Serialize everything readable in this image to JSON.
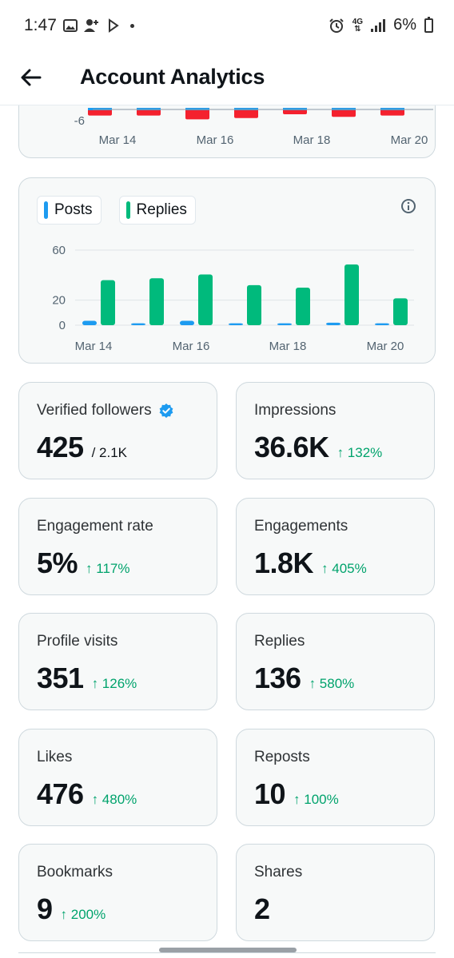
{
  "status_bar": {
    "time": "1:47",
    "battery": "6%",
    "network": "4G",
    "icons": [
      "image-icon",
      "person-add-icon",
      "messenger-icon",
      "dot-icon",
      "alarm-icon",
      "network-4g-icon",
      "signal-icon",
      "battery-charging-icon"
    ]
  },
  "header": {
    "title": "Account Analytics",
    "back_icon": "arrow-left-icon"
  },
  "colors": {
    "posts": "#1d9bf0",
    "replies": "#00ba7c",
    "negative": "#f4212e",
    "change_up": "#00a36c",
    "verified": "#1d9bf0"
  },
  "chart_data": [
    {
      "type": "bar",
      "note_visible": "partially scrolled; only the lowest y tick is visible",
      "categories": [
        "Mar 14",
        "Mar 15",
        "Mar 16",
        "Mar 17",
        "Mar 18",
        "Mar 19",
        "Mar 20"
      ],
      "x_tick_labels": [
        "Mar 14",
        "Mar 16",
        "Mar 18",
        "Mar 20"
      ],
      "y_tick_labels": [
        "-6"
      ],
      "series": [
        {
          "values": [
            -3,
            -3,
            -4.5,
            -4,
            -2.5,
            -3.5,
            -3
          ],
          "color": "#f4212e"
        },
        {
          "values": [
            -1,
            -1,
            -1,
            -1,
            -1,
            -1,
            -1
          ],
          "color": "#1d9bf0"
        }
      ],
      "ylim": [
        -6,
        0
      ]
    },
    {
      "type": "bar",
      "categories": [
        "Mar 14",
        "Mar 15",
        "Mar 16",
        "Mar 17",
        "Mar 18",
        "Mar 19",
        "Mar 20"
      ],
      "x_tick_labels": [
        "Mar 14",
        "Mar 16",
        "Mar 18",
        "Mar 20"
      ],
      "y_tick_labels": [
        "60",
        "20",
        "0"
      ],
      "ylim": [
        0,
        60
      ],
      "grid": true,
      "legend": [
        "Posts",
        "Replies"
      ],
      "series": [
        {
          "name": "Posts",
          "values": [
            3.5,
            1.5,
            3.5,
            1.5,
            1.5,
            2,
            1.5
          ],
          "color": "#1d9bf0"
        },
        {
          "name": "Replies",
          "values": [
            36,
            37.5,
            40.5,
            32,
            30,
            48.5,
            21.5
          ],
          "color": "#00ba7c"
        }
      ]
    }
  ],
  "metrics": [
    {
      "label": "Verified followers",
      "value": "425",
      "sub": "/ 2.1K",
      "change": "",
      "verified": true
    },
    {
      "label": "Impressions",
      "value": "36.6K",
      "sub": "",
      "change": "↑ 132%"
    },
    {
      "label": "Engagement rate",
      "value": "5%",
      "sub": "",
      "change": "↑ 117%"
    },
    {
      "label": "Engagements",
      "value": "1.8K",
      "sub": "",
      "change": "↑ 405%"
    },
    {
      "label": "Profile visits",
      "value": "351",
      "sub": "",
      "change": "↑ 126%"
    },
    {
      "label": "Replies",
      "value": "136",
      "sub": "",
      "change": "↑ 580%"
    },
    {
      "label": "Likes",
      "value": "476",
      "sub": "",
      "change": "↑ 480%"
    },
    {
      "label": "Reposts",
      "value": "10",
      "sub": "",
      "change": "↑ 100%"
    },
    {
      "label": "Bookmarks",
      "value": "9",
      "sub": "",
      "change": "↑ 200%"
    },
    {
      "label": "Shares",
      "value": "2",
      "sub": "",
      "change": ""
    }
  ]
}
